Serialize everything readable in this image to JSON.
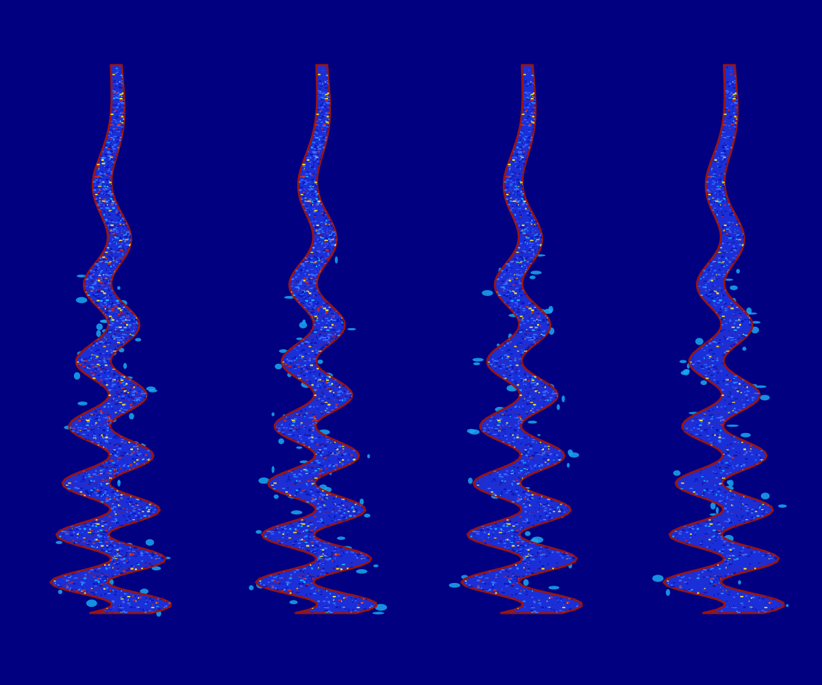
{
  "colors": {
    "background": "#000080",
    "body_blue": "#1b2fd8",
    "deep_blue": "#0a16b0",
    "light_blue": "#3b6cff",
    "cyan_speckle": "#14b4ff",
    "edge_red": "#9a1410",
    "speckle_red": "#d0281a",
    "speckle_yellow": "#f0e030",
    "halo_cyan": "#19a8f0"
  },
  "panels": [
    {
      "name": "helix-1",
      "speckle_density": 1.0,
      "red_interior": 0.55
    },
    {
      "name": "helix-2",
      "speckle_density": 0.85,
      "red_interior": 0.4
    },
    {
      "name": "helix-3",
      "speckle_density": 0.6,
      "red_interior": 0.15
    },
    {
      "name": "helix-4",
      "speckle_density": 0.45,
      "red_interior": 0.08
    }
  ]
}
